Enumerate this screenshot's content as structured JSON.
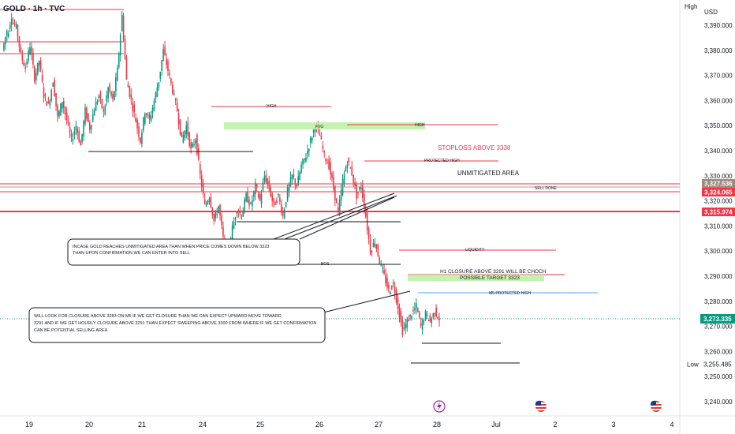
{
  "symbol": "GOLD · 1h · TVC",
  "axis": {
    "high_label": "High",
    "low_label": "Low",
    "currency": "USD",
    "y_ticks": [
      "3,390.000",
      "3,380.000",
      "3,370.000",
      "3,360.000",
      "3,350.000",
      "3,340.000",
      "3,330.000",
      "3,320.000",
      "3,310.000",
      "3,300.000",
      "3,290.000",
      "3,280.000",
      "3,270.000",
      "3,260.000",
      "3,250.000",
      "3,240.000"
    ],
    "x_ticks": [
      "19",
      "20",
      "21",
      "24",
      "25",
      "26",
      "27",
      "28",
      "Jul",
      "2",
      "3",
      "4"
    ]
  },
  "price_labels": {
    "l1": "3,327.536",
    "l2": "3,324.065",
    "l3": "3,315.974",
    "current": "3,273.335",
    "low": "3,255.485"
  },
  "annotations": {
    "high": "HIGH",
    "fvg": "FVG",
    "high2": "HIGH",
    "stoploss": "STOPLOSS ABOVE 3338",
    "protected_high": "PROTECTED HIGH",
    "unmitigated": "UNMITIGATED AREA",
    "sell_done": "SELL DONE",
    "liquidity": "LIQUIDITY",
    "bos": "BOS",
    "h1_choch": "H1 CLOSURE ABOVE 3291 WILL BE CHOCH",
    "possible_target": "POSSIBLE TARGET 3323",
    "m5_protected": "M5 PROTECTED HIGH",
    "note1_line1": "INCASE GOLD REACHES UNMITIGATED AREA THAN WHEN PRICE COMES DOWN BELOW 3323",
    "note1_line2": "THAN UPON CONFIRMATION WE CAN ENTER INTO SELL",
    "note2_line1": "WILL LOOK FOR CLOSURE ABOVE 3283 ON M5 IF WE GET CLOSURE THAN WE CAN EXPECT UPWARD MOVE TOWARD",
    "note2_line2": "3291 AND IF WE GET HOURLY CLOSURE ABOVE 3291 THAN EXPECT SWEEPING ABOVE 3300 FROM WHERE IF WE GET CONFIRMATION",
    "note2_line3": "CAN BE POTENTIAL SELLING AREA"
  },
  "colors": {
    "up": "#089981",
    "down": "#f23645",
    "red_line": "#f23645",
    "green_zone": "#b9f0a3",
    "blue_line": "#90bff9",
    "current_price": "#089981"
  },
  "icons": [
    "lightning-icon",
    "us-flag-icon",
    "us-flag-icon",
    "us-flag-icon"
  ],
  "chart_data": {
    "type": "candlestick",
    "title": "GOLD · 1h · TVC",
    "ylim": [
      3235,
      3397
    ],
    "x_labels": [
      "19",
      "20",
      "21",
      "24",
      "25",
      "26",
      "27",
      "28",
      "Jul",
      "2",
      "3",
      "4"
    ],
    "ohlc_path": [
      [
        3380,
        3388
      ],
      [
        3385,
        3394
      ],
      [
        3392,
        3389
      ],
      [
        3390,
        3378
      ],
      [
        3378,
        3373
      ],
      [
        3373,
        3382
      ],
      [
        3382,
        3369
      ],
      [
        3369,
        3376
      ],
      [
        3376,
        3362
      ],
      [
        3362,
        3358
      ],
      [
        3358,
        3368
      ],
      [
        3368,
        3353
      ],
      [
        3353,
        3360
      ],
      [
        3360,
        3352
      ],
      [
        3352,
        3344
      ],
      [
        3344,
        3350
      ],
      [
        3350,
        3342
      ],
      [
        3342,
        3356
      ],
      [
        3356,
        3349
      ],
      [
        3349,
        3357
      ],
      [
        3357,
        3362
      ],
      [
        3362,
        3355
      ],
      [
        3355,
        3365
      ],
      [
        3365,
        3360
      ],
      [
        3360,
        3372
      ],
      [
        3372,
        3394
      ],
      [
        3394,
        3368
      ],
      [
        3368,
        3360
      ],
      [
        3360,
        3352
      ],
      [
        3352,
        3344
      ],
      [
        3344,
        3356
      ],
      [
        3356,
        3352
      ],
      [
        3352,
        3360
      ],
      [
        3360,
        3368
      ],
      [
        3368,
        3380
      ],
      [
        3380,
        3372
      ],
      [
        3372,
        3364
      ],
      [
        3364,
        3356
      ],
      [
        3356,
        3344
      ],
      [
        3344,
        3350
      ],
      [
        3350,
        3340
      ],
      [
        3340,
        3345
      ],
      [
        3345,
        3330
      ],
      [
        3330,
        3318
      ],
      [
        3318,
        3322
      ],
      [
        3322,
        3312
      ],
      [
        3312,
        3318
      ],
      [
        3318,
        3305
      ],
      [
        3305,
        3296
      ],
      [
        3296,
        3309
      ],
      [
        3309,
        3317
      ],
      [
        3317,
        3314
      ],
      [
        3314,
        3322
      ],
      [
        3322,
        3318
      ],
      [
        3318,
        3326
      ],
      [
        3326,
        3320
      ],
      [
        3320,
        3330
      ],
      [
        3330,
        3325
      ],
      [
        3325,
        3318
      ],
      [
        3318,
        3322
      ],
      [
        3322,
        3314
      ],
      [
        3314,
        3324
      ],
      [
        3324,
        3330
      ],
      [
        3330,
        3326
      ],
      [
        3326,
        3334
      ],
      [
        3334,
        3338
      ],
      [
        3338,
        3344
      ],
      [
        3344,
        3350
      ],
      [
        3350,
        3346
      ],
      [
        3346,
        3338
      ],
      [
        3338,
        3334
      ],
      [
        3334,
        3325
      ],
      [
        3325,
        3315
      ],
      [
        3315,
        3328
      ],
      [
        3328,
        3336
      ],
      [
        3336,
        3331
      ],
      [
        3331,
        3322
      ],
      [
        3322,
        3326
      ],
      [
        3326,
        3314
      ],
      [
        3314,
        3300
      ],
      [
        3300,
        3304
      ],
      [
        3304,
        3296
      ],
      [
        3296,
        3290
      ],
      [
        3290,
        3284
      ],
      [
        3284,
        3287
      ],
      [
        3287,
        3278
      ],
      [
        3278,
        3268
      ],
      [
        3268,
        3272
      ],
      [
        3272,
        3275
      ],
      [
        3275,
        3278
      ],
      [
        3278,
        3270
      ],
      [
        3270,
        3275
      ],
      [
        3275,
        3272
      ],
      [
        3272,
        3276
      ],
      [
        3276,
        3273
      ]
    ],
    "levels": [
      {
        "label": "SELL DONE",
        "value": 3327.536
      },
      {
        "value": 3324.065
      },
      {
        "value": 3315.974
      },
      {
        "label": "LIQUIDITY",
        "value": 3301
      },
      {
        "label": "M5 PROTECTED HIGH",
        "value": 3283.5
      }
    ],
    "current": 3273.335,
    "low": 3255.485
  }
}
